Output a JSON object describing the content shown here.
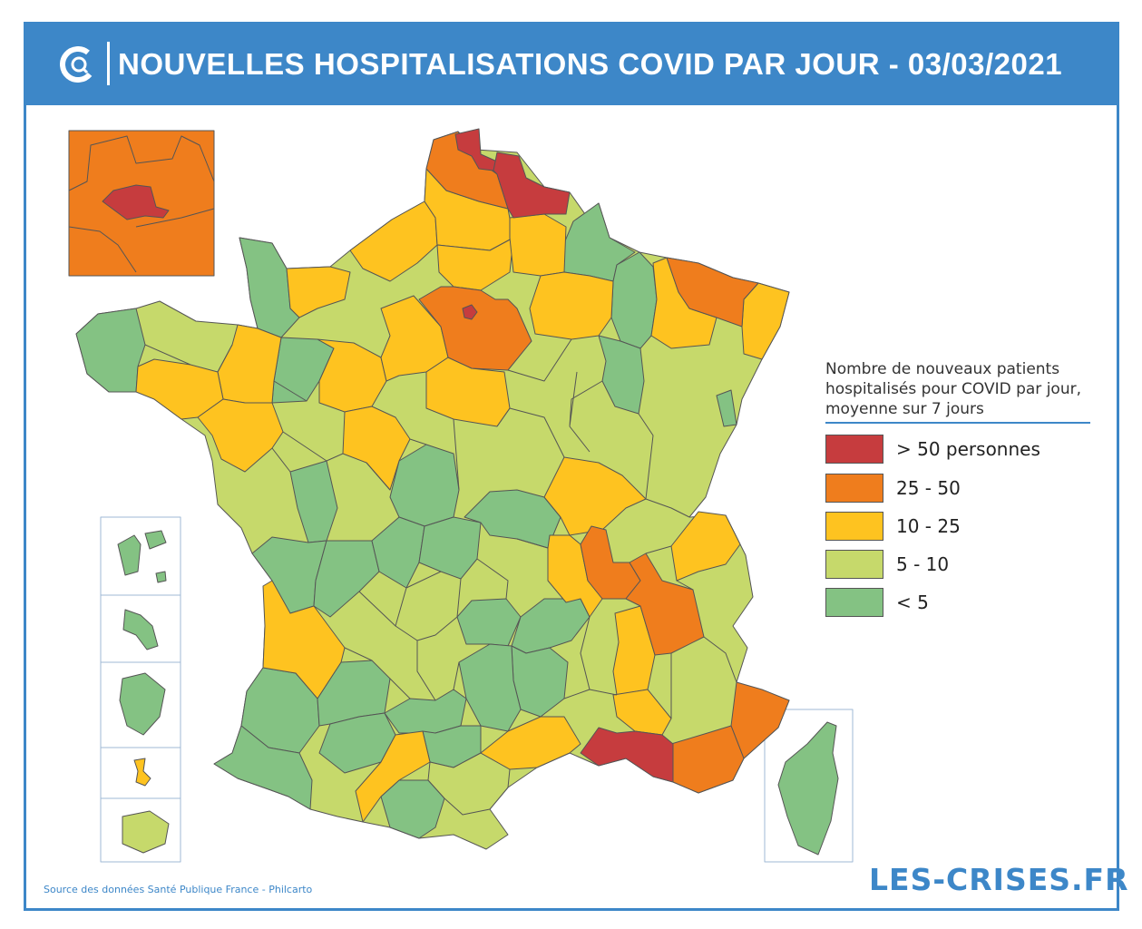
{
  "header": {
    "title": "NOUVELLES HOSPITALISATIONS COVID PAR JOUR - 03/03/2021"
  },
  "legend": {
    "title_lines": [
      "Nombre de nouveaux patients",
      "hospitalisés pour COVID par jour,",
      "moyenne sur 7 jours"
    ],
    "items": [
      {
        "label": "> 50 personnes",
        "color": "#c63c3e"
      },
      {
        "label": "25 - 50",
        "color": "#ef7d1d"
      },
      {
        "label": "10 - 25",
        "color": "#fec320"
      },
      {
        "label": "5 - 10",
        "color": "#c6d96b"
      },
      {
        "label": "< 5",
        "color": "#84c283"
      }
    ]
  },
  "colors": {
    "frame": "#3d87c8",
    "border": "#555555"
  },
  "footer": {
    "source": "Source des données Santé Publique France - Philcarto",
    "brand": "LES-CRISES.FR"
  }
}
